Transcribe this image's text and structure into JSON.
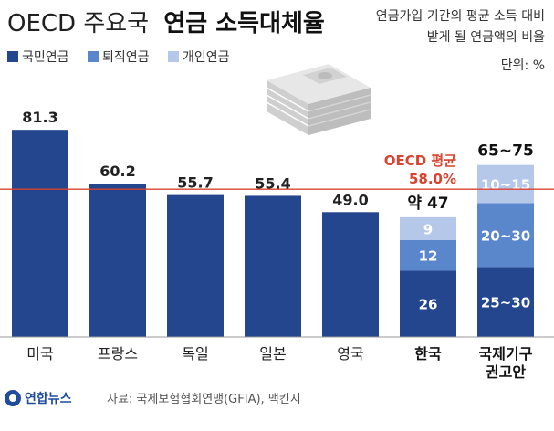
{
  "title": {
    "light": "OECD 주요국",
    "bold": "연금 소득대체율"
  },
  "subtitle_lines": [
    "연금가입 기간의 평균 소득 대비",
    "받게 될 연금액의 비율"
  ],
  "unit": "단위: %",
  "legend": [
    {
      "label": "국민연금",
      "color": "#23468f"
    },
    {
      "label": "퇴직연금",
      "color": "#5a86cc"
    },
    {
      "label": "개인연금",
      "color": "#b5c8ea"
    }
  ],
  "oecd_average": {
    "label": "OECD 평균",
    "value_label": "58.0%",
    "value": 58.0,
    "color": "#d9432f"
  },
  "source": "자료: 국제보험협회연맹(GFIA), 맥킨지",
  "logo": "연합뉴스",
  "chart_data": {
    "type": "bar",
    "ylim": [
      0,
      100
    ],
    "grid": false,
    "legend_position": "top-left",
    "categories": [
      {
        "label": "미국",
        "bold": false
      },
      {
        "label": "프랑스",
        "bold": false
      },
      {
        "label": "독일",
        "bold": false
      },
      {
        "label": "일본",
        "bold": false
      },
      {
        "label": "영국",
        "bold": false
      },
      {
        "label": "한국",
        "bold": true
      },
      {
        "label": "국제기구\n권고안",
        "bold": true
      }
    ],
    "simple_bars": [
      {
        "category": "미국",
        "value": 81.3,
        "label": "81.3"
      },
      {
        "category": "프랑스",
        "value": 60.2,
        "label": "60.2"
      },
      {
        "category": "독일",
        "value": 55.7,
        "label": "55.7"
      },
      {
        "category": "일본",
        "value": 55.4,
        "label": "55.4"
      },
      {
        "category": "영국",
        "value": 49.0,
        "label": "49.0"
      }
    ],
    "stacked_bars": [
      {
        "category": "한국",
        "total_label": "약 47",
        "segments": [
          {
            "series": "국민연금",
            "value": 26,
            "label": "26"
          },
          {
            "series": "퇴직연금",
            "value": 12,
            "label": "12"
          },
          {
            "series": "개인연금",
            "value": 9,
            "label": "9"
          }
        ]
      },
      {
        "category": "국제기구\n권고안",
        "total_label": "65~75",
        "segments": [
          {
            "series": "국민연금",
            "value": 27.5,
            "label": "25~30"
          },
          {
            "series": "퇴직연금",
            "value": 25,
            "label": "20~30"
          },
          {
            "series": "개인연금",
            "value": 15,
            "label": "10~15"
          }
        ]
      }
    ]
  }
}
